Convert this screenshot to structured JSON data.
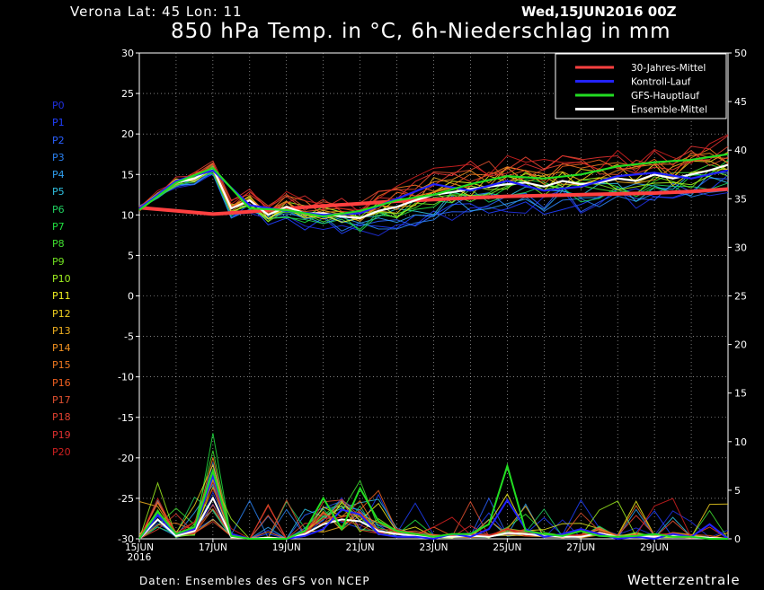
{
  "header": {
    "location": "Verona   Lat: 45 Lon: 11",
    "run_date": "Wed,15JUN2016 00Z",
    "title": "850 hPa Temp. in °C, 6h-Niederschlag in mm"
  },
  "footer": {
    "source": "Daten: Ensembles des GFS von NCEP",
    "brand": "Wetterzentrale"
  },
  "colors": {
    "background": "#000000",
    "grid": "#ffffff",
    "climatology": "#ff4040",
    "control": "#2222ff",
    "gfs_main": "#22dd22",
    "ensemble_mean": "#ffffff"
  },
  "members": [
    {
      "name": "P0",
      "color": "#2030e0"
    },
    {
      "name": "P1",
      "color": "#2040ff"
    },
    {
      "name": "P2",
      "color": "#2a60ff"
    },
    {
      "name": "P3",
      "color": "#2a80f0"
    },
    {
      "name": "P4",
      "color": "#30a0f0"
    },
    {
      "name": "P5",
      "color": "#30c0e0"
    },
    {
      "name": "P6",
      "color": "#20d060"
    },
    {
      "name": "P7",
      "color": "#20e040"
    },
    {
      "name": "P8",
      "color": "#40e030"
    },
    {
      "name": "P9",
      "color": "#70e020"
    },
    {
      "name": "P10",
      "color": "#a0f020"
    },
    {
      "name": "P11",
      "color": "#f0f020"
    },
    {
      "name": "P12",
      "color": "#f0d020"
    },
    {
      "name": "P13",
      "color": "#f0b020"
    },
    {
      "name": "P14",
      "color": "#f09020"
    },
    {
      "name": "P15",
      "color": "#f07820"
    },
    {
      "name": "P16",
      "color": "#f06020"
    },
    {
      "name": "P17",
      "color": "#e05030"
    },
    {
      "name": "P18",
      "color": "#e04030"
    },
    {
      "name": "P19",
      "color": "#e03030"
    },
    {
      "name": "P20",
      "color": "#d02020"
    }
  ],
  "chart_data": {
    "type": "line",
    "title": "850 hPa Temp. in °C, 6h-Niederschlag in mm",
    "x_tick_labels": [
      "15JUN",
      "17JUN",
      "19JUN",
      "21JUN",
      "23JUN",
      "25JUN",
      "27JUN",
      "29JUN"
    ],
    "x_year_label": "2016",
    "y_left": {
      "ylim": [
        -30,
        30
      ],
      "ticks": [
        30,
        25,
        20,
        15,
        10,
        5,
        0,
        -5,
        -10,
        -15,
        -20,
        -25,
        -30
      ]
    },
    "y_right": {
      "ylim": [
        0,
        50
      ],
      "ticks": [
        50,
        45,
        40,
        35,
        30,
        25,
        20,
        15,
        10,
        5,
        0
      ]
    },
    "x_range_days": [
      0,
      16
    ],
    "grid": true,
    "legend": {
      "position": "top-right",
      "entries": [
        {
          "label": "30-Jahres-Mittel",
          "color": "#ff4040"
        },
        {
          "label": "Kontroll-Lauf",
          "color": "#2222ff"
        },
        {
          "label": "GFS-Hauptlauf",
          "color": "#22dd22"
        },
        {
          "label": "Ensemble-Mittel",
          "color": "#ffffff"
        }
      ]
    },
    "temperature_series": [
      {
        "name": "30-Jahres-Mittel",
        "x": [
          0,
          1,
          2,
          3,
          4,
          5,
          6,
          7,
          8,
          9,
          10,
          11,
          12,
          13,
          14,
          15,
          16
        ],
        "values": [
          10.9,
          10.5,
          10.1,
          10.4,
          10.8,
          11.1,
          11.4,
          11.7,
          11.9,
          12.1,
          12.3,
          12.4,
          12.5,
          12.6,
          12.7,
          12.9,
          13.2
        ]
      },
      {
        "name": "Ensemble-Mittel",
        "x": [
          0,
          0.5,
          1,
          1.5,
          2,
          2.5,
          3,
          3.5,
          4,
          4.5,
          5,
          5.5,
          6,
          6.5,
          7,
          7.5,
          8,
          8.5,
          9,
          9.5,
          10,
          10.5,
          11,
          11.5,
          12,
          12.5,
          13,
          13.5,
          14,
          14.5,
          15,
          15.5,
          16
        ],
        "values": [
          10.8,
          12.5,
          14.0,
          14.5,
          15.8,
          10.8,
          11.8,
          10.0,
          11.0,
          10.2,
          10.2,
          9.8,
          9.6,
          10.5,
          11.0,
          11.8,
          12.5,
          12.8,
          13.2,
          13.5,
          13.8,
          14.0,
          13.5,
          14.2,
          13.8,
          14.0,
          14.5,
          14.2,
          15.0,
          14.5,
          15.0,
          15.5,
          16.2
        ]
      },
      {
        "name": "Kontroll-Lauf",
        "x": [
          0,
          1,
          2,
          3,
          4,
          5,
          6,
          7,
          8,
          9,
          10,
          11,
          12,
          13,
          14,
          15,
          16
        ],
        "values": [
          10.8,
          14.2,
          15.5,
          11.2,
          10.5,
          10.0,
          10.2,
          12.0,
          13.8,
          13.0,
          14.2,
          13.0,
          13.5,
          14.8,
          15.2,
          14.5,
          15.5
        ]
      },
      {
        "name": "GFS-Hauptlauf",
        "x": [
          0,
          1,
          2,
          3,
          4,
          5,
          6,
          7,
          8,
          9,
          10,
          11,
          12,
          13,
          14,
          15,
          16
        ],
        "values": [
          10.6,
          14.0,
          15.8,
          10.8,
          10.6,
          9.8,
          10.5,
          11.8,
          12.5,
          13.8,
          14.8,
          14.5,
          15.0,
          16.0,
          16.5,
          16.8,
          17.5
        ]
      }
    ],
    "precipitation_series": [
      {
        "name": "Ensemble-Mittel",
        "x": [
          0,
          0.5,
          1,
          1.5,
          2,
          2.5,
          3,
          3.5,
          4,
          4.5,
          5,
          5.5,
          6,
          6.5,
          7,
          7.5,
          8,
          8.5,
          9,
          9.5,
          10,
          10.5,
          11,
          11.5,
          12,
          12.5,
          13,
          13.5,
          14,
          14.5,
          15,
          15.5,
          16
        ],
        "values": [
          0,
          2.0,
          0.3,
          0.8,
          4.2,
          0.2,
          0,
          0.1,
          0,
          0.5,
          1.5,
          2.0,
          1.8,
          0.8,
          0.5,
          0.3,
          0.2,
          0.2,
          0.3,
          0.2,
          0.6,
          0.5,
          0.3,
          0.2,
          0.2,
          0.6,
          0.2,
          0.3,
          0.2,
          0.3,
          0.2,
          0.1,
          0
        ]
      },
      {
        "name": "Kontroll-Lauf",
        "x": [
          0,
          0.5,
          1,
          1.5,
          2,
          2.5,
          3,
          3.5,
          4,
          4.5,
          5,
          5.5,
          6,
          6.5,
          7,
          7.5,
          8,
          8.5,
          9,
          9.5,
          10,
          10.5,
          11,
          11.5,
          12,
          12.5,
          13,
          13.5,
          14,
          14.5,
          15,
          15.5,
          16
        ],
        "values": [
          0,
          2.5,
          0.5,
          1.0,
          6.5,
          0.5,
          0,
          0,
          0,
          0.3,
          1.0,
          3.0,
          2.5,
          0.5,
          0.2,
          0.2,
          0,
          0.5,
          0.2,
          1.0,
          4.0,
          1.0,
          0.2,
          0.5,
          1.0,
          0.5,
          0,
          0.2,
          0,
          0.5,
          0.2,
          1.5,
          0
        ]
      },
      {
        "name": "GFS-Hauptlauf",
        "x": [
          0,
          0.5,
          1,
          1.5,
          2,
          2.5,
          3,
          3.5,
          4,
          4.5,
          5,
          5.5,
          6,
          6.5,
          7,
          7.5,
          8,
          8.5,
          9,
          9.5,
          10,
          10.5,
          11,
          11.5,
          12,
          12.5,
          13,
          13.5,
          14,
          14.5,
          15,
          15.5,
          16
        ],
        "values": [
          0,
          2.8,
          0.5,
          1.2,
          7.0,
          0.3,
          0,
          0,
          0,
          0.8,
          4.2,
          1.0,
          5.2,
          1.8,
          0.8,
          0.5,
          0.2,
          0.5,
          0.5,
          1.5,
          7.5,
          0.8,
          0.5,
          0.3,
          0.8,
          0.3,
          0.2,
          0.3,
          0.5,
          0.2,
          0.2,
          0,
          0
        ]
      }
    ]
  }
}
